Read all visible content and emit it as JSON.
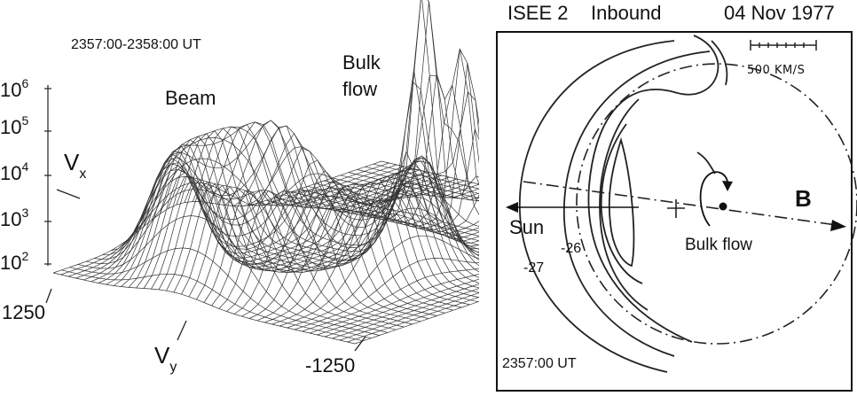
{
  "left_panel": {
    "time_range": "2357:00-2358:00 UT",
    "beam_label": "Beam",
    "bulk_label_line1": "Bulk",
    "bulk_label_line2": "flow",
    "vx_base": "V",
    "vx_sub": "x",
    "vy_base": "V",
    "vy_sub": "y",
    "scale_base": "10",
    "scale_ticks": [
      {
        "exp": "6"
      },
      {
        "exp": "5"
      },
      {
        "exp": "4"
      },
      {
        "exp": "3"
      },
      {
        "exp": "2"
      }
    ],
    "axis_min_label": "1250",
    "axis_max_label": "-1250"
  },
  "right_panel": {
    "header_spacecraft": "ISEE 2",
    "header_direction": "Inbound",
    "header_date": "04 Nov 1977",
    "scale_bar_label": "500 KM/S",
    "sun_label": "Sun",
    "b_label": "B",
    "bulk_flow_label": "Bulk flow",
    "contour_labels": [
      "-26",
      "-27"
    ],
    "time_label": "2357:00 UT"
  }
}
